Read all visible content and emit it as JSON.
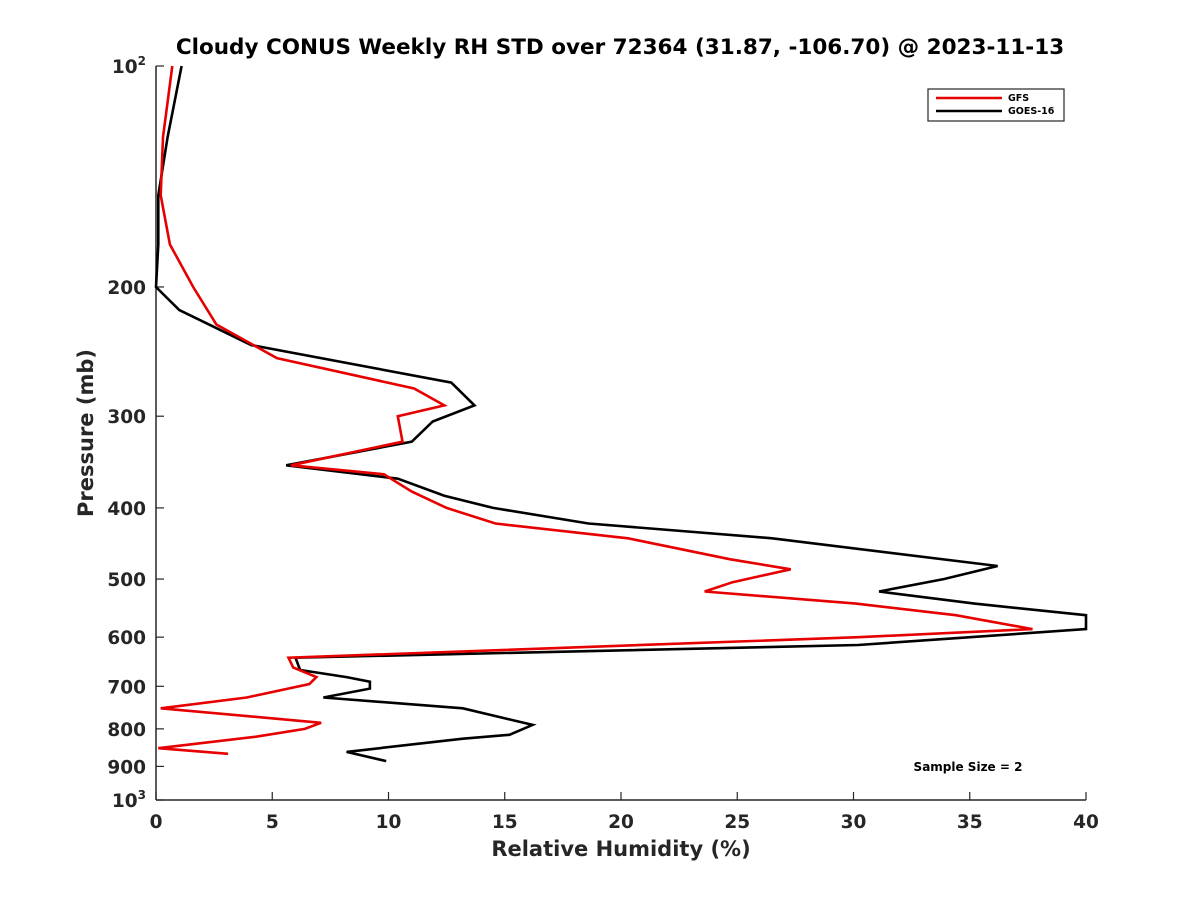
{
  "chart_data": {
    "type": "line",
    "title": "Cloudy CONUS Weekly RH STD over 72364 (31.87, -106.70) @ 2023-11-13",
    "xlabel": "Relative Humidity (%)",
    "ylabel": "Pressure (mb)",
    "xlim": [
      0,
      40
    ],
    "ylim": [
      100,
      1000
    ],
    "y_scale": "log",
    "y_reversed": true,
    "grid": false,
    "legend_position": "top-right",
    "x_ticks": [
      "0",
      "5",
      "10",
      "15",
      "20",
      "25",
      "30",
      "35",
      "40"
    ],
    "y_ticks": [
      {
        "value": 100,
        "base": "10",
        "exp": "2"
      },
      {
        "value": 200,
        "label": "200"
      },
      {
        "value": 300,
        "label": "300"
      },
      {
        "value": 400,
        "label": "400"
      },
      {
        "value": 500,
        "label": "500"
      },
      {
        "value": 600,
        "label": "600"
      },
      {
        "value": 700,
        "label": "700"
      },
      {
        "value": 800,
        "label": "800"
      },
      {
        "value": 900,
        "label": "900"
      },
      {
        "value": 1000,
        "base": "10",
        "exp": "3"
      }
    ],
    "annotation": "Sample Size = 2",
    "series": [
      {
        "name": "GFS",
        "color": "#e60000",
        "points": [
          [
            0.7,
            100
          ],
          [
            0.3,
            125
          ],
          [
            0.2,
            150
          ],
          [
            0.6,
            175
          ],
          [
            1.6,
            200
          ],
          [
            2.6,
            225
          ],
          [
            5.2,
            250
          ],
          [
            11.1,
            275
          ],
          [
            12.4,
            290
          ],
          [
            10.4,
            300
          ],
          [
            10.6,
            325
          ],
          [
            5.8,
            350
          ],
          [
            9.8,
            360
          ],
          [
            11.0,
            380
          ],
          [
            12.5,
            400
          ],
          [
            14.6,
            420
          ],
          [
            20.3,
            440
          ],
          [
            24.7,
            470
          ],
          [
            27.3,
            485
          ],
          [
            24.8,
            505
          ],
          [
            23.6,
            520
          ],
          [
            30.1,
            540
          ],
          [
            34.4,
            560
          ],
          [
            37.7,
            585
          ],
          [
            30.2,
            600
          ],
          [
            5.7,
            640
          ],
          [
            5.9,
            660
          ],
          [
            6.9,
            680
          ],
          [
            6.6,
            695
          ],
          [
            3.9,
            725
          ],
          [
            0.2,
            750
          ],
          [
            7.1,
            785
          ],
          [
            6.4,
            800
          ],
          [
            4.3,
            820
          ],
          [
            0.1,
            850
          ],
          [
            3.1,
            865
          ]
        ]
      },
      {
        "name": "GOES-16",
        "color": "#000000",
        "points": [
          [
            1.1,
            100
          ],
          [
            0.5,
            125
          ],
          [
            0.1,
            150
          ],
          [
            0.1,
            175
          ],
          [
            0.0,
            200
          ],
          [
            1.0,
            215
          ],
          [
            4.1,
            240
          ],
          [
            12.7,
            270
          ],
          [
            13.7,
            290
          ],
          [
            11.9,
            305
          ],
          [
            11.0,
            325
          ],
          [
            5.6,
            350
          ],
          [
            10.4,
            365
          ],
          [
            12.4,
            385
          ],
          [
            14.5,
            400
          ],
          [
            18.6,
            420
          ],
          [
            26.5,
            440
          ],
          [
            36.2,
            480
          ],
          [
            33.9,
            500
          ],
          [
            31.1,
            520
          ],
          [
            35.2,
            540
          ],
          [
            40.0,
            560
          ],
          [
            40.0,
            585
          ],
          [
            30.2,
            615
          ],
          [
            6.0,
            640
          ],
          [
            6.2,
            665
          ],
          [
            8.2,
            680
          ],
          [
            9.2,
            690
          ],
          [
            9.2,
            705
          ],
          [
            7.2,
            725
          ],
          [
            13.2,
            750
          ],
          [
            16.2,
            790
          ],
          [
            15.2,
            815
          ],
          [
            13.2,
            825
          ],
          [
            8.2,
            860
          ],
          [
            9.9,
            885
          ]
        ]
      }
    ]
  }
}
